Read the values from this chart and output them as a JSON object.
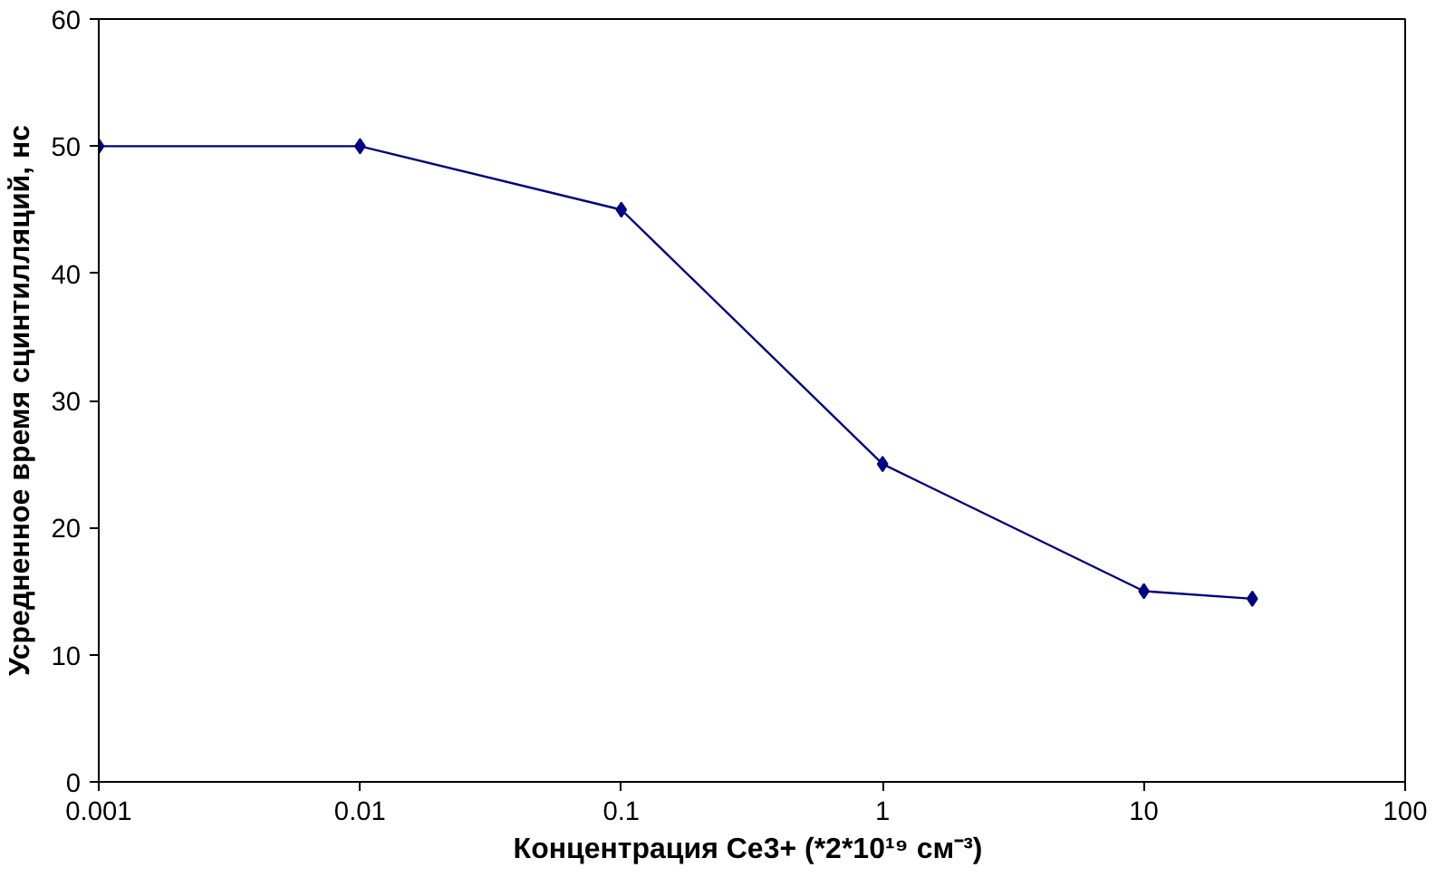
{
  "chart_data": {
    "type": "line",
    "xlabel": "Концентрация Ce3+  (*2*10¹⁹ см⁻³)",
    "ylabel": "Усредненное время сцинтилляций, нс",
    "x": [
      0.001,
      0.01,
      0.1,
      1,
      10,
      26
    ],
    "series": [
      {
        "color": "#000080",
        "values": [
          50,
          50,
          45,
          25,
          15,
          14.4
        ]
      }
    ],
    "log": "x",
    "xlim": [
      0.001,
      100
    ],
    "xticks": [
      0.001,
      0.01,
      0.1,
      1,
      10,
      100
    ],
    "ylim": [
      0,
      60
    ],
    "yticks": [
      0,
      10,
      20,
      30,
      40,
      50,
      60
    ],
    "grid": false,
    "marker": "diamond",
    "line_style": "solid"
  }
}
